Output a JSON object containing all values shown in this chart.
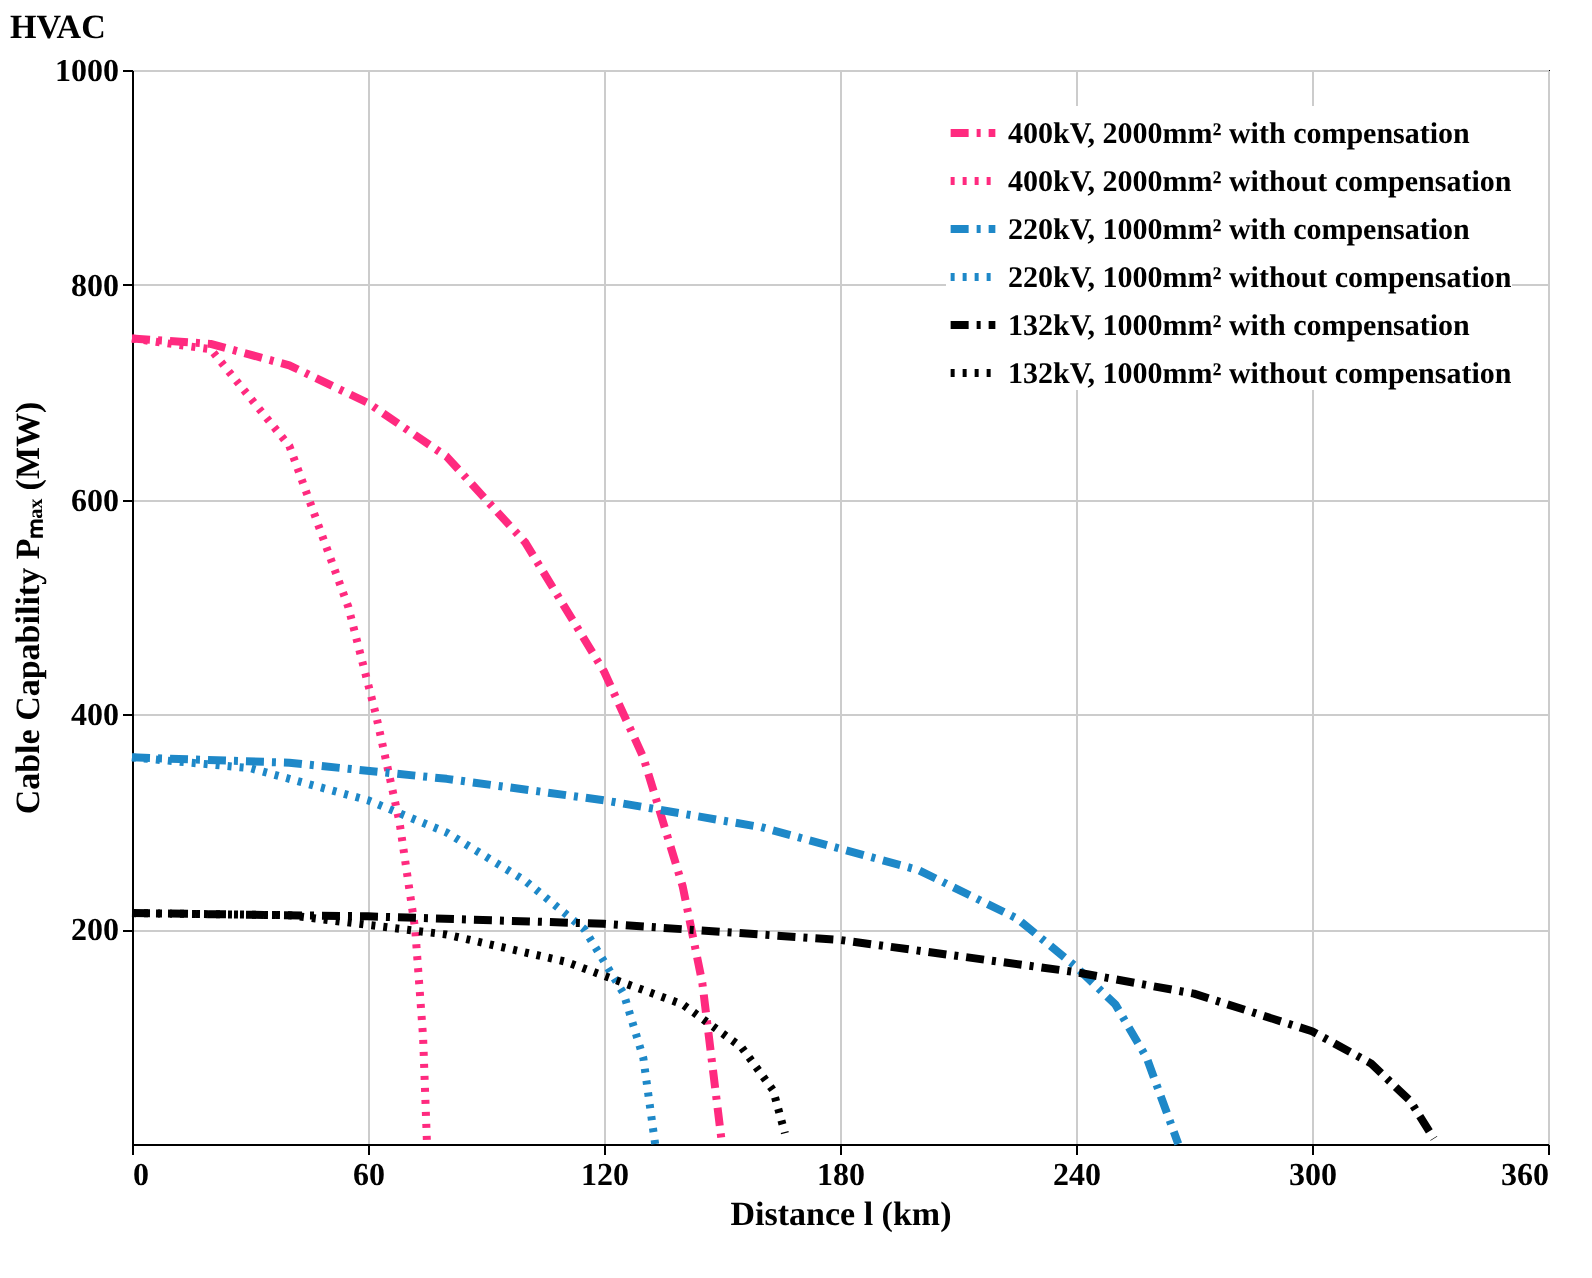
{
  "chart_data": {
    "type": "line",
    "title": "HVAC",
    "xlabel": "Distance l (km)",
    "ylabel": "Cable Capability Pₘₐₓ (MW)",
    "xlim": [
      0,
      360
    ],
    "xticks": [
      0,
      60,
      120,
      180,
      240,
      300,
      360
    ],
    "ylim": [
      0,
      1000
    ],
    "yticks": [
      200,
      400,
      600,
      800,
      1000
    ],
    "grid": true,
    "legend": "top right",
    "series": [
      {
        "name": "400kV, 2000mm² with compensation",
        "color": "#ff2a7f",
        "line_style": "dashed",
        "x": [
          0,
          20,
          40,
          60,
          80,
          100,
          120,
          130,
          140,
          145,
          150
        ],
        "values": [
          750,
          745,
          725,
          690,
          640,
          560,
          440,
          360,
          240,
          150,
          0
        ]
      },
      {
        "name": "400kV, 2000mm² without compensation",
        "color": "#ff2a7f",
        "line_style": "dotted",
        "x": [
          0,
          20,
          40,
          55,
          62,
          68,
          72,
          74,
          75
        ],
        "values": [
          750,
          740,
          650,
          500,
          400,
          300,
          200,
          100,
          0
        ]
      },
      {
        "name": "220kV, 1000mm² with compensation",
        "color": "#1e88c8",
        "line_style": "dashed",
        "x": [
          0,
          40,
          80,
          120,
          160,
          200,
          225,
          240,
          250,
          258,
          266
        ],
        "values": [
          360,
          355,
          340,
          320,
          295,
          255,
          210,
          165,
          130,
          80,
          0
        ]
      },
      {
        "name": "220kV, 1000mm² without compensation",
        "color": "#1e88c8",
        "line_style": "dotted",
        "x": [
          0,
          30,
          60,
          80,
          100,
          115,
          125,
          130,
          133
        ],
        "values": [
          360,
          350,
          320,
          290,
          245,
          200,
          140,
          80,
          0
        ]
      },
      {
        "name": "132kV, 1000mm² with compensation",
        "color": "#000000",
        "line_style": "dashed",
        "x": [
          0,
          60,
          120,
          180,
          240,
          270,
          300,
          315,
          325,
          331
        ],
        "values": [
          215,
          212,
          205,
          190,
          160,
          140,
          105,
          75,
          40,
          5
        ]
      },
      {
        "name": "132kV, 1000mm² without compensation",
        "color": "#000000",
        "line_style": "dotted",
        "x": [
          0,
          40,
          80,
          110,
          140,
          155,
          163,
          166
        ],
        "values": [
          215,
          213,
          195,
          170,
          130,
          90,
          50,
          10
        ]
      }
    ]
  }
}
